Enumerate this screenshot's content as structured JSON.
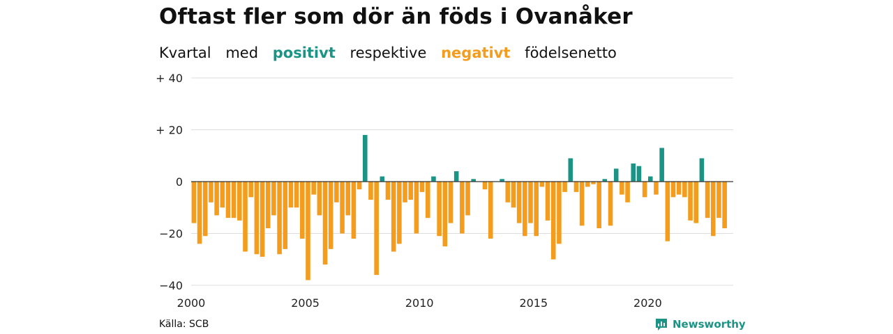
{
  "title": "Oftast fler som dör än föds i Ovanåker",
  "subtitle": {
    "w1": "Kvartal",
    "w2": "med",
    "positive": "positivt",
    "w3": "respektive",
    "negative": "negativt",
    "w4": "födelsenetto"
  },
  "source": "Källa: SCB",
  "brand": "Newsworthy",
  "colors": {
    "positive": "#1b9486",
    "negative": "#f39c1d",
    "grid": "#dddddd",
    "zero": "#333333"
  },
  "chart_data": {
    "type": "bar",
    "grid": true,
    "ylim": [
      -40,
      40
    ],
    "y_ticks": [
      {
        "value": 40,
        "label": "+ 40"
      },
      {
        "value": 20,
        "label": "+ 20"
      },
      {
        "value": 0,
        "label": "0"
      },
      {
        "value": -20,
        "label": "−20"
      },
      {
        "value": -40,
        "label": "−40"
      }
    ],
    "x_ticks": [
      {
        "value": 2000,
        "label": "2000"
      },
      {
        "value": 2005,
        "label": "2005"
      },
      {
        "value": 2010,
        "label": "2010"
      },
      {
        "value": 2015,
        "label": "2015"
      },
      {
        "value": 2020,
        "label": "2020"
      }
    ],
    "start_year": 2000,
    "start_quarter": 1,
    "values": [
      -16,
      -24,
      -21,
      -8,
      -13,
      -10,
      -14,
      -14,
      -15,
      -27,
      -6,
      -28,
      -29,
      -18,
      -13,
      -28,
      -26,
      -10,
      -10,
      -22,
      -38,
      -5,
      -13,
      -32,
      -26,
      -8,
      -20,
      -13,
      -22,
      -3,
      18,
      -7,
      -36,
      2,
      -7,
      -27,
      -24,
      -8,
      -7,
      -20,
      -4,
      -14,
      2,
      -21,
      -25,
      -16,
      4,
      -20,
      -13,
      1,
      0,
      -3,
      -22,
      0,
      1,
      -8,
      -10,
      -16,
      -21,
      -16,
      -21,
      -2,
      -15,
      -30,
      -24,
      -4,
      9,
      -4,
      -17,
      -2,
      -1,
      -18,
      1,
      -17,
      5,
      -5,
      -8,
      7,
      6,
      -6,
      2,
      -5,
      13,
      -23,
      -6,
      -5,
      -6,
      -15,
      -16,
      9,
      -14,
      -21,
      -14,
      -18
    ]
  }
}
